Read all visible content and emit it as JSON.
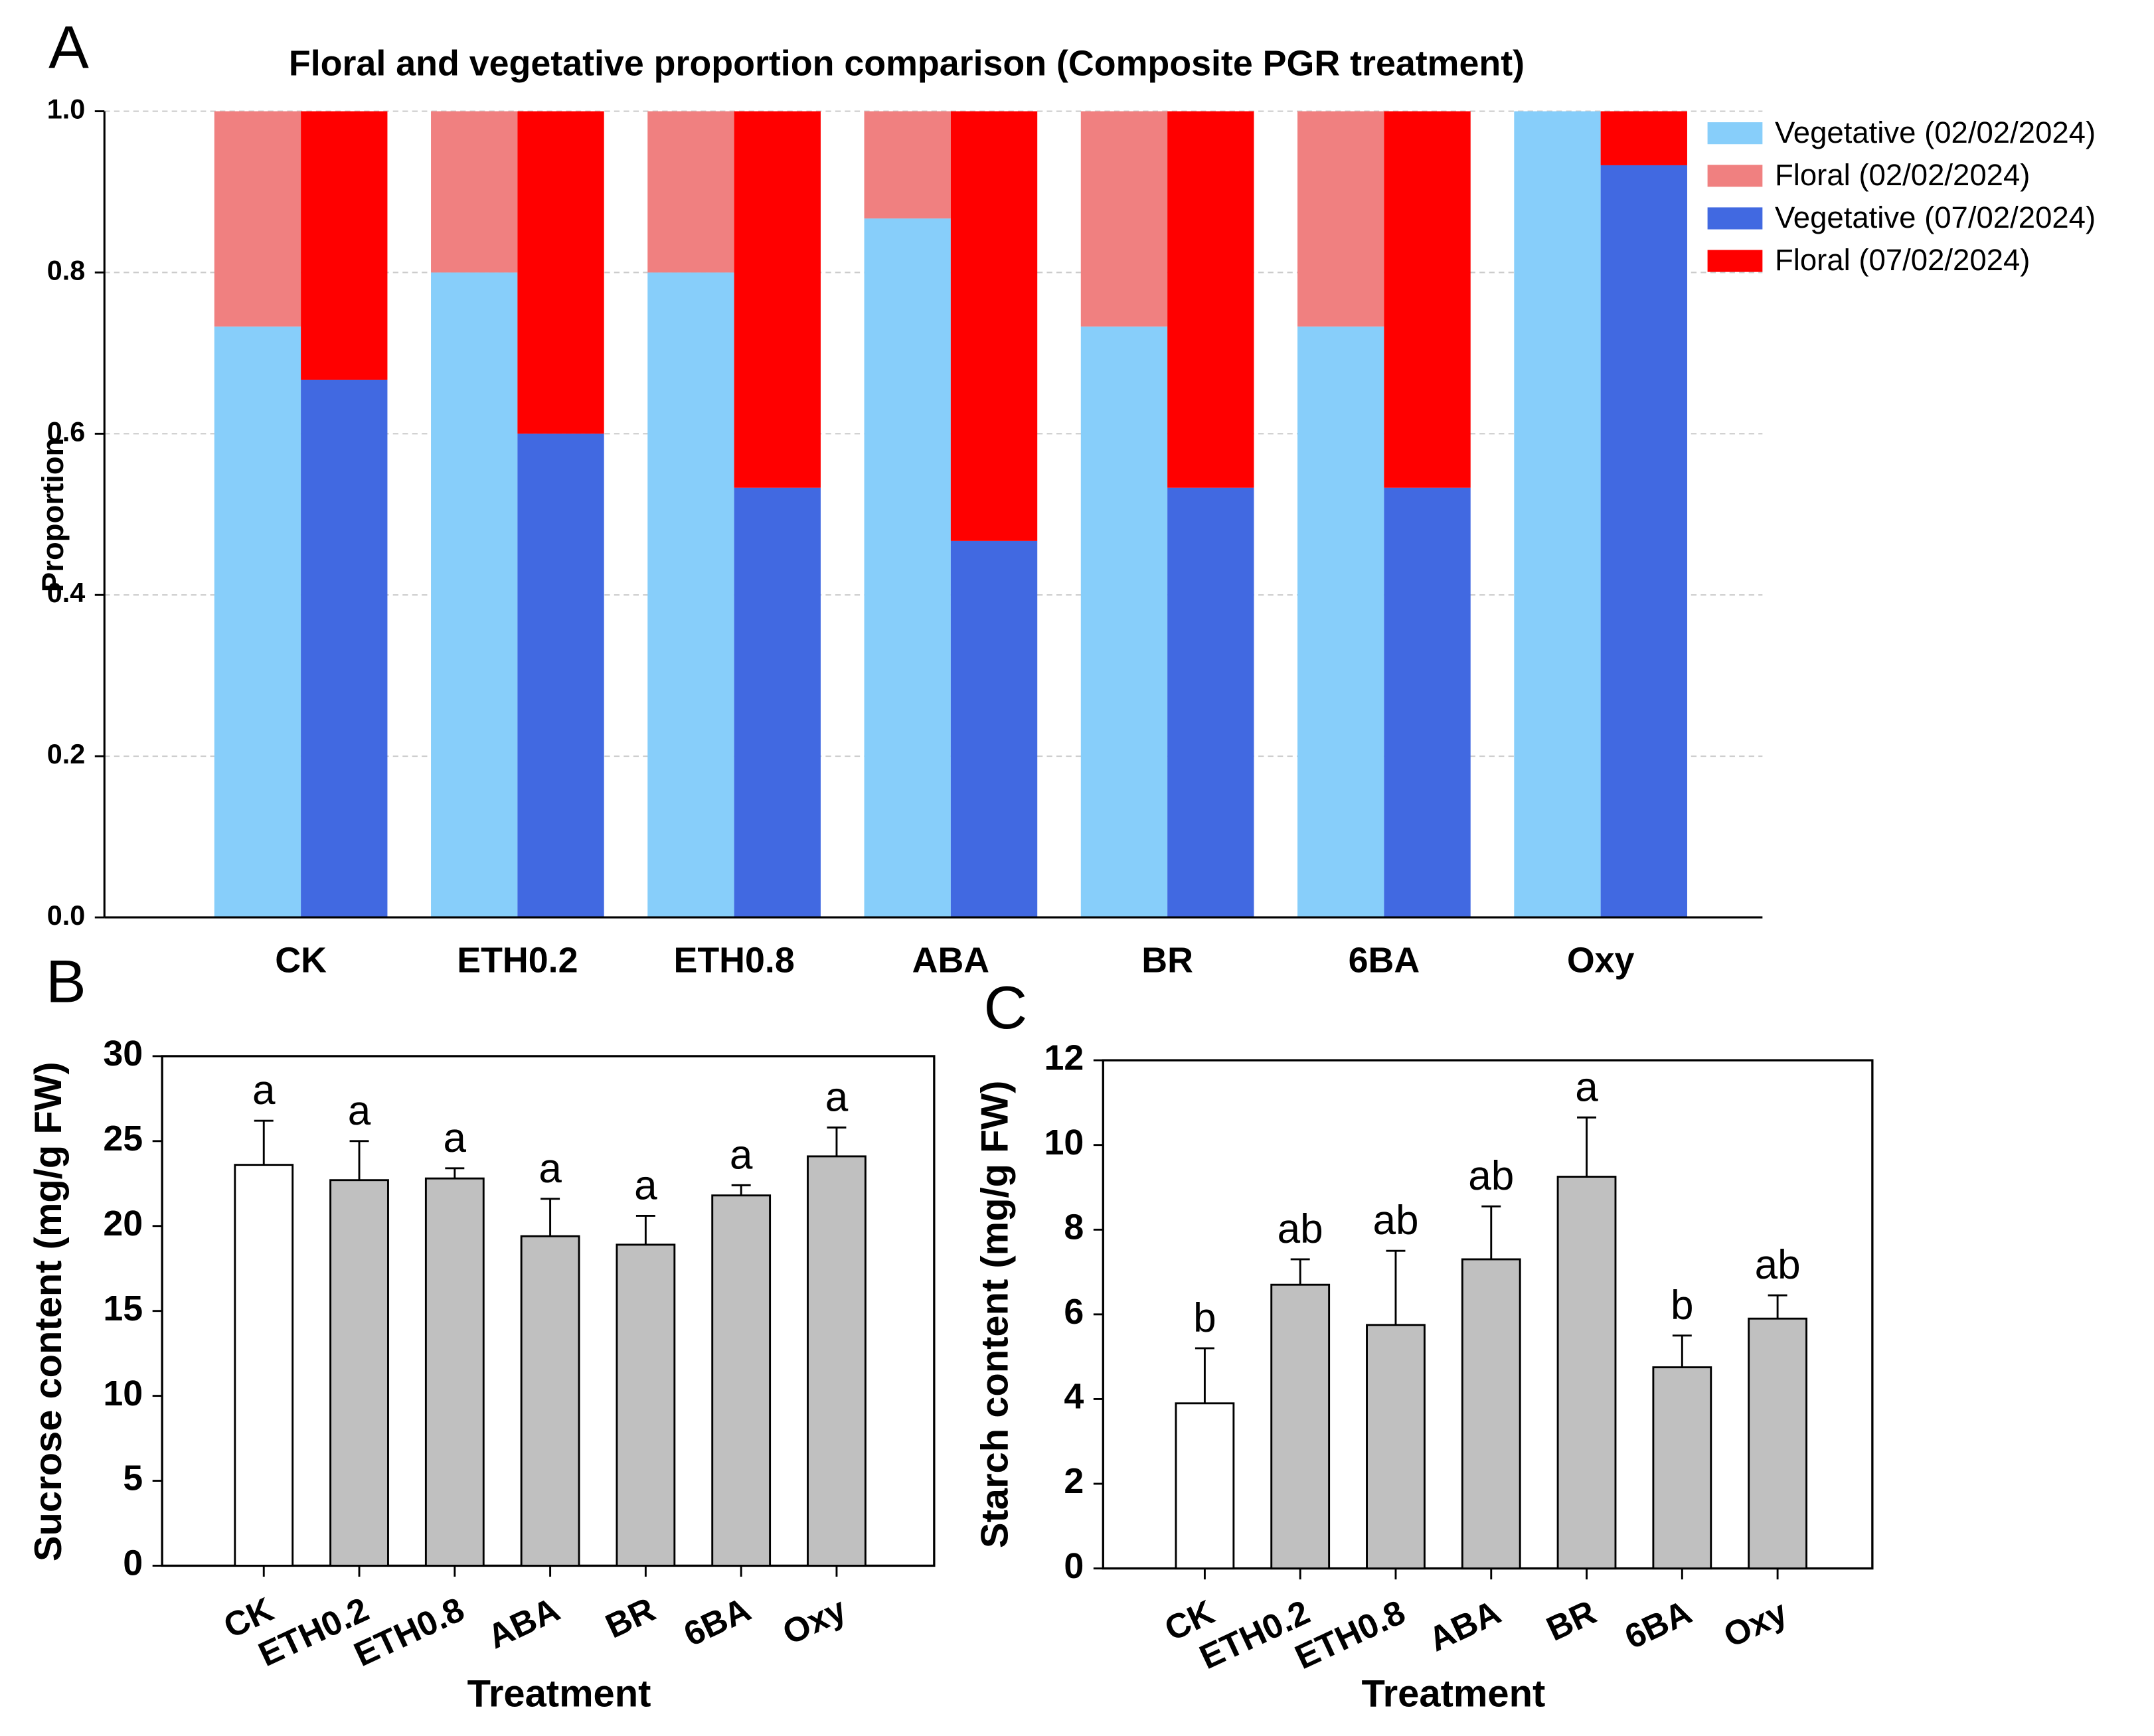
{
  "chart_data": [
    {
      "type": "stacked-grouped-bar",
      "panel": "A",
      "title": "Floral and vegetative proportion comparison (Composite PGR treatment)",
      "ylabel": "Proportion",
      "categories": [
        "CK",
        "ETH0.2",
        "ETH0.8",
        "ABA",
        "BR",
        "6BA",
        "Oxy"
      ],
      "series": [
        {
          "name": "Vegetative (02/02/2024)",
          "color": "#87cefa",
          "stack": 0,
          "values": [
            0.733,
            0.8,
            0.8,
            0.867,
            0.733,
            0.733,
            1.0
          ]
        },
        {
          "name": "Floral (02/02/2024)",
          "color": "#f08080",
          "stack": 0,
          "values": [
            0.267,
            0.2,
            0.2,
            0.133,
            0.267,
            0.267,
            0.0
          ]
        },
        {
          "name": "Vegetative (07/02/2024)",
          "color": "#4169e1",
          "stack": 1,
          "values": [
            0.667,
            0.6,
            0.533,
            0.467,
            0.533,
            0.533,
            0.933
          ]
        },
        {
          "name": "Floral (07/02/2024)",
          "color": "#ff0000",
          "stack": 1,
          "values": [
            0.333,
            0.4,
            0.467,
            0.533,
            0.467,
            0.467,
            0.067
          ]
        }
      ],
      "ylim": [
        0,
        1
      ],
      "yticks": [
        {
          "value": 0,
          "label": "0.0"
        },
        {
          "value": 0.2,
          "label": "0.2"
        },
        {
          "value": 0.4,
          "label": "0.4"
        },
        {
          "value": 0.6,
          "label": "0.6"
        },
        {
          "value": 0.8,
          "label": "0.8"
        },
        {
          "value": 1,
          "label": "1.0"
        }
      ],
      "grid": true,
      "legend": "upper right"
    },
    {
      "type": "error-bar",
      "panel": "B",
      "xlabel": "Treatment",
      "ylabel": "Sucrose content (mg/g FW)",
      "categories": [
        "CK",
        "ETH0.2",
        "ETH0.8",
        "ABA",
        "BR",
        "6BA",
        "Oxy"
      ],
      "values": [
        23.6,
        22.7,
        22.8,
        19.4,
        18.9,
        21.8,
        24.1
      ],
      "errors": [
        2.6,
        2.3,
        0.6,
        2.2,
        1.7,
        0.6,
        1.7
      ],
      "letters": [
        "a",
        "a",
        "a",
        "a",
        "a",
        "a",
        "a"
      ],
      "colors": [
        "#ffffff",
        "#c0c0c0",
        "#c0c0c0",
        "#c0c0c0",
        "#c0c0c0",
        "#c0c0c0",
        "#c0c0c0"
      ],
      "ylim": [
        0,
        30
      ],
      "yticks": [
        0,
        5,
        10,
        15,
        20,
        25,
        30
      ]
    },
    {
      "type": "error-bar",
      "panel": "C",
      "xlabel": "Treatment",
      "ylabel": "Starch content (mg/g FW)",
      "categories": [
        "CK",
        "ETH0.2",
        "ETH0.8",
        "ABA",
        "BR",
        "6BA",
        "Oxy"
      ],
      "values": [
        3.9,
        6.7,
        5.75,
        7.3,
        9.25,
        4.75,
        5.9
      ],
      "errors": [
        1.3,
        0.6,
        1.75,
        1.25,
        1.4,
        0.75,
        0.55
      ],
      "letters": [
        "b",
        "ab",
        "ab",
        "ab",
        "a",
        "b",
        "ab"
      ],
      "colors": [
        "#ffffff",
        "#c0c0c0",
        "#c0c0c0",
        "#c0c0c0",
        "#c0c0c0",
        "#c0c0c0",
        "#c0c0c0"
      ],
      "ylim": [
        0,
        12
      ],
      "yticks": [
        0,
        2,
        4,
        6,
        8,
        10,
        12
      ]
    }
  ]
}
